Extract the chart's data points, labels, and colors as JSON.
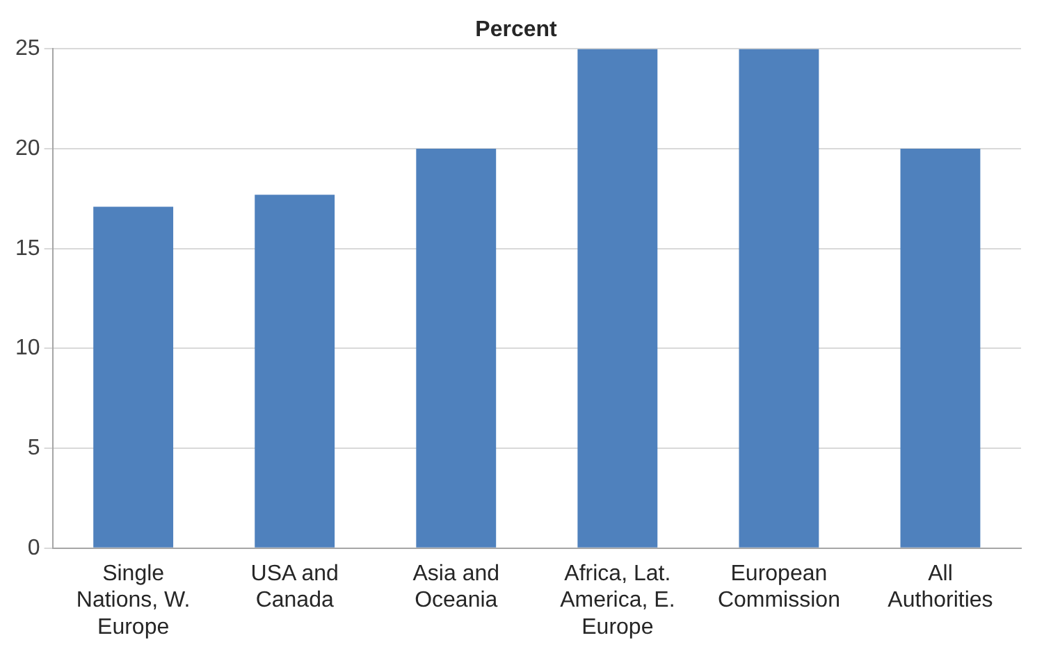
{
  "chart_data": {
    "type": "bar",
    "title": "Percent",
    "categories": [
      "Single Nations, W. Europe",
      "USA and Canada",
      "Asia and Oceania",
      "Africa, Lat. America, E. Europe",
      "European Commission",
      "All Authorities"
    ],
    "values": [
      17.1,
      17.7,
      20,
      25,
      25,
      20
    ],
    "color": "#4f81bd",
    "ylim": [
      0,
      25
    ],
    "yticks": [
      0,
      5,
      10,
      15,
      20,
      25
    ],
    "grid": "y",
    "legend": false
  }
}
